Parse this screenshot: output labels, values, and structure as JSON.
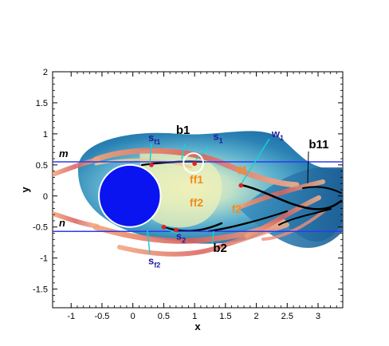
{
  "chart_data": {
    "type": "scatter",
    "xlabel": "x",
    "ylabel": "y",
    "xlim": [
      -1.3,
      3.4
    ],
    "ylim": [
      -1.8,
      2.0
    ],
    "x_ticks": [
      "-1",
      "-0.5",
      "0",
      "0.5",
      "1",
      "1.5",
      "2",
      "2.5",
      "3"
    ],
    "y_ticks": [
      "2",
      "1.5",
      "1",
      "0.5",
      "0",
      "-0.5",
      "-1",
      "-1.5"
    ],
    "x_tick_values": [
      -1,
      -0.5,
      0,
      0.5,
      1,
      1.5,
      2,
      2.5,
      3
    ],
    "y_tick_values": [
      2,
      1.5,
      1,
      0.5,
      0,
      -0.5,
      -1,
      -1.5
    ],
    "reference_lines": [
      {
        "label": "m",
        "y": 0.55
      },
      {
        "label": "n",
        "y": -0.57
      }
    ],
    "cylinder": {
      "cx": -0.05,
      "cy": 0.0,
      "rx": 0.5,
      "ry": 0.5
    },
    "annotations": [
      {
        "id": "b1",
        "text": "b1",
        "x": 0.7,
        "y": 1.0,
        "color": "#000000"
      },
      {
        "id": "b11",
        "text": "b11",
        "x": 2.85,
        "y": 0.77,
        "color": "#000000"
      },
      {
        "id": "b2",
        "text": "b2",
        "x": 1.3,
        "y": -0.9,
        "color": "#000000"
      },
      {
        "id": "s1",
        "text": "s",
        "sub": "1",
        "x": 1.3,
        "y": 0.9,
        "color": "#1c1c9c"
      },
      {
        "id": "sf1",
        "text": "s",
        "sub": "f1",
        "x": 0.25,
        "y": 0.88,
        "color": "#1c1c9c"
      },
      {
        "id": "w1",
        "text": "w",
        "sub": "1",
        "x": 2.25,
        "y": 0.95,
        "color": "#1c1c9c"
      },
      {
        "id": "s2",
        "text": "s",
        "sub": "2",
        "x": 0.7,
        "y": -0.7,
        "color": "#1c1c9c"
      },
      {
        "id": "sf2",
        "text": "s",
        "sub": "f2",
        "x": 0.25,
        "y": -1.1,
        "color": "#1c1c9c"
      },
      {
        "id": "ff1",
        "text": "ff1",
        "x": 0.92,
        "y": 0.2,
        "color": "#f28c1a"
      },
      {
        "id": "f1",
        "text": "f1",
        "x": 1.7,
        "y": 0.35,
        "color": "#f28c1a"
      },
      {
        "id": "ff2",
        "text": "ff2",
        "x": 0.92,
        "y": -0.17,
        "color": "#f28c1a"
      },
      {
        "id": "f2",
        "text": "f2",
        "x": 1.6,
        "y": -0.27,
        "color": "#f28c1a"
      }
    ],
    "markers": [
      {
        "x": 0.3,
        "y": 0.5
      },
      {
        "x": 1.0,
        "y": 0.52
      },
      {
        "x": 1.75,
        "y": 0.17
      },
      {
        "x": 0.5,
        "y": -0.5
      },
      {
        "x": 0.7,
        "y": -0.55
      }
    ],
    "highlight_circle": {
      "x": 0.98,
      "y": 0.53,
      "r": 0.16
    },
    "colors": {
      "cylinder": "#0a14f0",
      "reference_line": "#2a3cf2",
      "pointer": "#18d0d8",
      "marker": "#e62020",
      "field_dark": "#1f6ea6",
      "field_light": "#f5f0b8"
    }
  }
}
